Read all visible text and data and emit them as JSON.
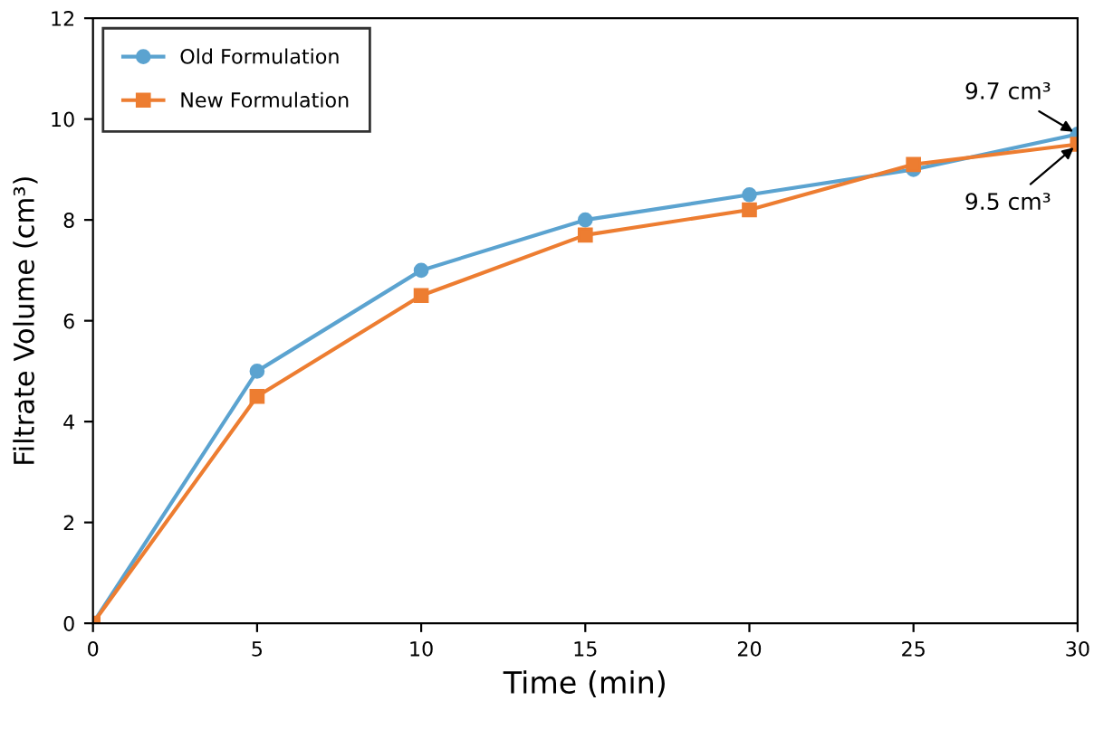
{
  "chart_data": {
    "type": "line",
    "xlabel": "Time (min)",
    "ylabel": "Filtrate Volume (cm³)",
    "x": [
      0,
      5,
      10,
      15,
      20,
      25,
      30
    ],
    "series": [
      {
        "name": "Old Formulation",
        "color": "#5ba3d0",
        "marker": "circle",
        "values": [
          0,
          5,
          7,
          8,
          8.5,
          9,
          9.7
        ]
      },
      {
        "name": "New Formulation",
        "color": "#ed7d31",
        "marker": "square",
        "values": [
          0,
          4.5,
          6.5,
          7.7,
          8.2,
          9.1,
          9.5
        ]
      }
    ],
    "xlim": [
      0,
      30
    ],
    "xticks": [
      0,
      5,
      10,
      15,
      20,
      25,
      30
    ],
    "ylim": [
      0,
      12
    ],
    "yticks": [
      0,
      2,
      4,
      6,
      8,
      10,
      12
    ],
    "grid": false,
    "legend": "top left",
    "annotations": [
      {
        "text": "9.7 cm³",
        "x": 30,
        "y": 9.7
      },
      {
        "text": "9.5 cm³",
        "x": 30,
        "y": 9.5
      }
    ]
  }
}
